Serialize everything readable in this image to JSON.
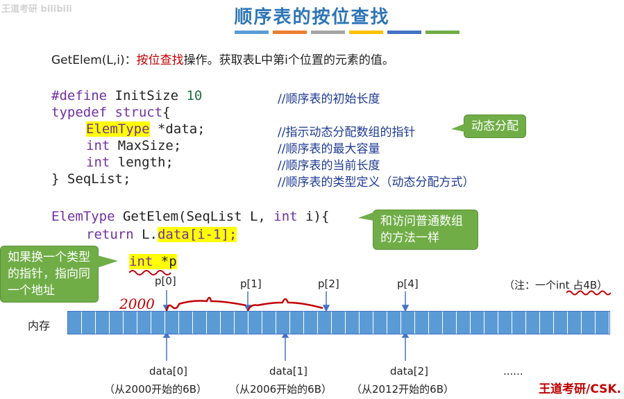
{
  "title": "顺序表的按位查找",
  "watermark": "王道考研 bilibili",
  "bar_colors": [
    "#5b9bd5",
    "#ed7d31",
    "#a5a5a5",
    "#ffc000",
    "#4472c4",
    "#70ad47"
  ],
  "intro": {
    "prefix": "GetElem(L,i)：",
    "highlight": "按位查找",
    "suffix": "操作。获取表L中第i个位置的元素的值。"
  },
  "code_lines": [
    {
      "k": "#define",
      "r": " InitSize ",
      "n": "10",
      "c": "//顺序表的初始长度"
    },
    {
      "k": "typedef struct",
      "r": "{",
      "c": ""
    },
    {
      "y": "ElemType",
      "r": " *data;",
      "c": "//指示动态分配数组的指针"
    },
    {
      "k": "int",
      "r": " MaxSize;",
      "c": "//顺序表的最大容量"
    },
    {
      "k": "int",
      "r": " length;",
      "c": "//顺序表的当前长度"
    },
    {
      "r": "} SeqList;",
      "c": "//顺序表的类型定义（动态分配方式）"
    }
  ],
  "func": {
    "ret": "ElemType",
    "name": " GetElem(SeqList L, ",
    "kw": "int",
    "rest": " i){",
    "body_prefix": "return",
    "body_obj": " L.",
    "body_hl": "data[i-1];",
    "close": "}"
  },
  "callouts": {
    "dynamic": "动态分配",
    "same": "和访问普通数组的方法一样",
    "pointer": "如果换一个类型的指针，指向同一个地址"
  },
  "int_ptr": {
    "kw": "int",
    "rest": " *p"
  },
  "handwrite": {
    "addr": "2000"
  },
  "pointers": [
    "p[0]",
    "p[1]",
    "p[2]",
    "p[4]"
  ],
  "note": "（注：一个int 占4B）",
  "memory_label": "内存",
  "memory_cells": 39,
  "data_labels": [
    "data[0]",
    "data[1]",
    "data[2]",
    "......"
  ],
  "data_desc": [
    "（从2000开始的6B）",
    "（从2006开始的6B）",
    "（从2012开始的6B）"
  ],
  "brand": "王道考研/CSK."
}
